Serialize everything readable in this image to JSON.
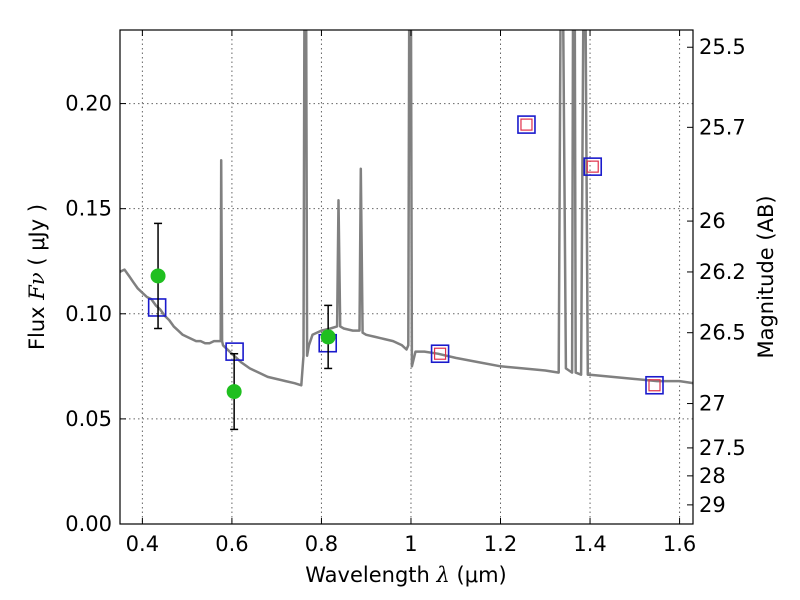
{
  "chart_data": {
    "type": "line",
    "xlabel_prefix": "Wavelength",
    "xlabel_symbol": "λ",
    "xlabel_unit": "(μm)",
    "ylabel_prefix": "Flux",
    "ylabel_symbol": "Fν",
    "ylabel_unit": "( μJy )",
    "y2label": "Magnitude (AB)",
    "xlim": [
      0.35,
      1.63
    ],
    "ylim": [
      0.0,
      0.235
    ],
    "grid": true,
    "x_ticks": [
      {
        "v": 0.4,
        "label": "0.4"
      },
      {
        "v": 0.6,
        "label": "0.6"
      },
      {
        "v": 0.8,
        "label": "0.8"
      },
      {
        "v": 1.0,
        "label": "1"
      },
      {
        "v": 1.2,
        "label": "1.2"
      },
      {
        "v": 1.4,
        "label": "1.4"
      },
      {
        "v": 1.6,
        "label": "1.6"
      }
    ],
    "y_ticks": [
      {
        "v": 0.0,
        "label": "0.00"
      },
      {
        "v": 0.05,
        "label": "0.05"
      },
      {
        "v": 0.1,
        "label": "0.10"
      },
      {
        "v": 0.15,
        "label": "0.15"
      },
      {
        "v": 0.2,
        "label": "0.20"
      }
    ],
    "magnitude_ticks": [
      {
        "flux": 0.2268,
        "label": "25.5"
      },
      {
        "flux": 0.1887,
        "label": "25.7"
      },
      {
        "flux": 0.1441,
        "label": "26"
      },
      {
        "flux": 0.1199,
        "label": "26.2"
      },
      {
        "flux": 0.091,
        "label": "26.5"
      },
      {
        "flux": 0.0573,
        "label": "27"
      },
      {
        "flux": 0.0362,
        "label": "27.5"
      },
      {
        "flux": 0.0229,
        "label": "28"
      },
      {
        "flux": 0.0091,
        "label": "29"
      }
    ],
    "colors": {
      "model": "#808080",
      "observed": "#1fbf1f",
      "model_box": "#1a1acc",
      "model_inner_box": "#e0304a",
      "errorbar": "#000000",
      "grid": "#666666"
    },
    "model_spectrum": [
      [
        0.35,
        0.12
      ],
      [
        0.36,
        0.121
      ],
      [
        0.37,
        0.118
      ],
      [
        0.38,
        0.115
      ],
      [
        0.39,
        0.112
      ],
      [
        0.4,
        0.11
      ],
      [
        0.41,
        0.108
      ],
      [
        0.42,
        0.107
      ],
      [
        0.43,
        0.104
      ],
      [
        0.44,
        0.102
      ],
      [
        0.45,
        0.099
      ],
      [
        0.46,
        0.097
      ],
      [
        0.47,
        0.094
      ],
      [
        0.48,
        0.092
      ],
      [
        0.49,
        0.09
      ],
      [
        0.5,
        0.089
      ],
      [
        0.51,
        0.088
      ],
      [
        0.52,
        0.087
      ],
      [
        0.53,
        0.087
      ],
      [
        0.54,
        0.086
      ],
      [
        0.55,
        0.086
      ],
      [
        0.56,
        0.087
      ],
      [
        0.57,
        0.087
      ],
      [
        0.575,
        0.087
      ],
      [
        0.576,
        0.173
      ],
      [
        0.578,
        0.087
      ],
      [
        0.58,
        0.085
      ],
      [
        0.6,
        0.081
      ],
      [
        0.62,
        0.077
      ],
      [
        0.64,
        0.074
      ],
      [
        0.66,
        0.072
      ],
      [
        0.68,
        0.07
      ],
      [
        0.7,
        0.069
      ],
      [
        0.72,
        0.068
      ],
      [
        0.74,
        0.067
      ],
      [
        0.755,
        0.066
      ],
      [
        0.76,
        0.08
      ],
      [
        0.762,
        0.24
      ],
      [
        0.766,
        0.24
      ],
      [
        0.768,
        0.08
      ],
      [
        0.772,
        0.085
      ],
      [
        0.78,
        0.09
      ],
      [
        0.8,
        0.092
      ],
      [
        0.82,
        0.093
      ],
      [
        0.835,
        0.094
      ],
      [
        0.838,
        0.154
      ],
      [
        0.842,
        0.094
      ],
      [
        0.85,
        0.093
      ],
      [
        0.87,
        0.092
      ],
      [
        0.885,
        0.092
      ],
      [
        0.888,
        0.169
      ],
      [
        0.892,
        0.091
      ],
      [
        0.9,
        0.09
      ],
      [
        0.92,
        0.089
      ],
      [
        0.94,
        0.088
      ],
      [
        0.96,
        0.087
      ],
      [
        0.98,
        0.085
      ],
      [
        0.99,
        0.083
      ],
      [
        0.994,
        0.085
      ],
      [
        0.996,
        0.24
      ],
      [
        1.0,
        0.24
      ],
      [
        1.002,
        0.075
      ],
      [
        1.01,
        0.082
      ],
      [
        1.03,
        0.082
      ],
      [
        1.06,
        0.081
      ],
      [
        1.1,
        0.079
      ],
      [
        1.15,
        0.077
      ],
      [
        1.2,
        0.075
      ],
      [
        1.25,
        0.074
      ],
      [
        1.3,
        0.073
      ],
      [
        1.33,
        0.072
      ],
      [
        1.334,
        0.24
      ],
      [
        1.34,
        0.24
      ],
      [
        1.346,
        0.074
      ],
      [
        1.36,
        0.072
      ],
      [
        1.362,
        0.24
      ],
      [
        1.366,
        0.24
      ],
      [
        1.368,
        0.072
      ],
      [
        1.38,
        0.071
      ],
      [
        1.385,
        0.24
      ],
      [
        1.39,
        0.24
      ],
      [
        1.395,
        0.071
      ],
      [
        1.4,
        0.071
      ],
      [
        1.45,
        0.07
      ],
      [
        1.5,
        0.069
      ],
      [
        1.55,
        0.068
      ],
      [
        1.6,
        0.068
      ],
      [
        1.63,
        0.067
      ]
    ],
    "observed_points": [
      {
        "x": 0.435,
        "y": 0.118,
        "yerr_low": 0.093,
        "yerr_high": 0.143
      },
      {
        "x": 0.605,
        "y": 0.063,
        "yerr_low": 0.045,
        "yerr_high": 0.081
      },
      {
        "x": 0.815,
        "y": 0.089,
        "yerr_low": 0.074,
        "yerr_high": 0.104
      }
    ],
    "model_photometry": [
      {
        "x": 0.433,
        "y": 0.103,
        "inner": false
      },
      {
        "x": 0.606,
        "y": 0.082,
        "inner": false
      },
      {
        "x": 0.814,
        "y": 0.086,
        "inner": false
      },
      {
        "x": 1.065,
        "y": 0.081,
        "inner": true
      },
      {
        "x": 1.258,
        "y": 0.19,
        "inner": true
      },
      {
        "x": 1.406,
        "y": 0.17,
        "inner": true
      },
      {
        "x": 1.544,
        "y": 0.066,
        "inner": true
      }
    ]
  }
}
